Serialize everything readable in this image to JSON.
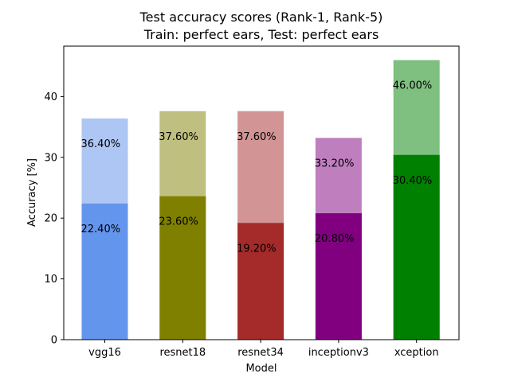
{
  "chart_data": {
    "type": "bar",
    "title": "Test accuracy scores (Rank-1, Rank-5)",
    "subtitle": "Train: perfect ears, Test: perfect ears",
    "xlabel": "Model",
    "ylabel": "Accuracy [%]",
    "ylim": [
      0,
      48.3
    ],
    "yticks": [
      0,
      10,
      20,
      30,
      40
    ],
    "categories": [
      "vgg16",
      "resnet18",
      "resnet34",
      "inceptionv3",
      "xception"
    ],
    "grid": false,
    "series": [
      {
        "values": [
          36.4,
          37.6,
          37.6,
          33.2,
          46.0
        ],
        "labels": [
          "36.40%",
          "37.60%",
          "37.60%",
          "33.20%",
          "46.00%"
        ],
        "colors": [
          "#aec6f4",
          "#bfbf80",
          "#d29494",
          "#bf7fbf",
          "#7fbf7f"
        ]
      },
      {
        "values": [
          22.4,
          23.6,
          19.2,
          20.8,
          30.4
        ],
        "labels": [
          "22.40%",
          "23.60%",
          "19.20%",
          "20.80%",
          "30.40%"
        ],
        "colors": [
          "#6495ed",
          "#808000",
          "#a52a2a",
          "#800080",
          "#008000"
        ]
      }
    ]
  }
}
